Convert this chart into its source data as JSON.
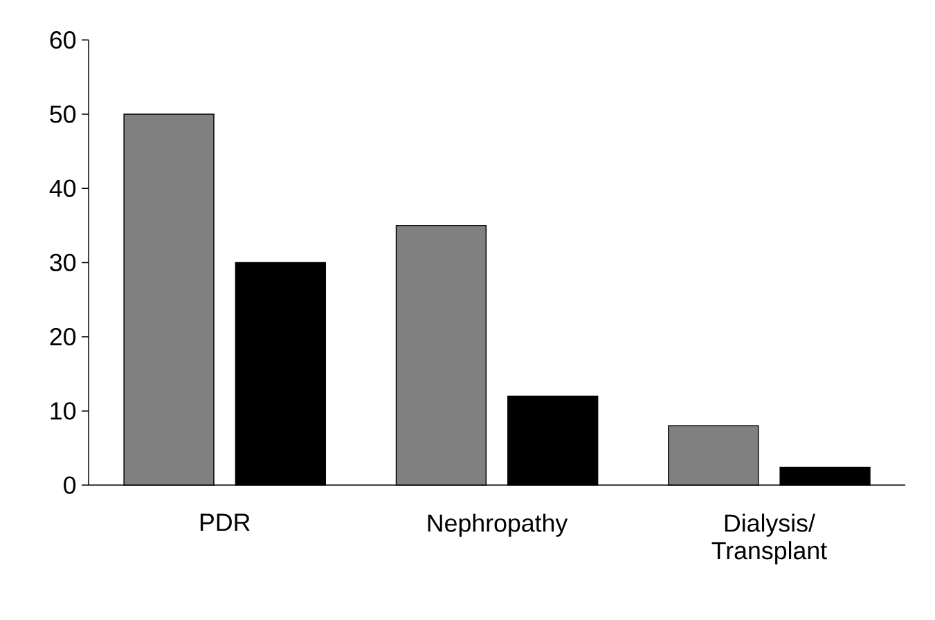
{
  "chart_data": {
    "type": "bar",
    "categories": [
      "PDR",
      "Nephropathy",
      "Dialysis/ Transplant"
    ],
    "series": [
      {
        "color": "#808080",
        "values": [
          50,
          35,
          8
        ]
      },
      {
        "color": "#000000",
        "values": [
          30,
          12,
          2.4
        ]
      }
    ],
    "ylim": [
      0,
      60
    ],
    "yticks": [
      0,
      10,
      20,
      30,
      40,
      50,
      60
    ]
  }
}
